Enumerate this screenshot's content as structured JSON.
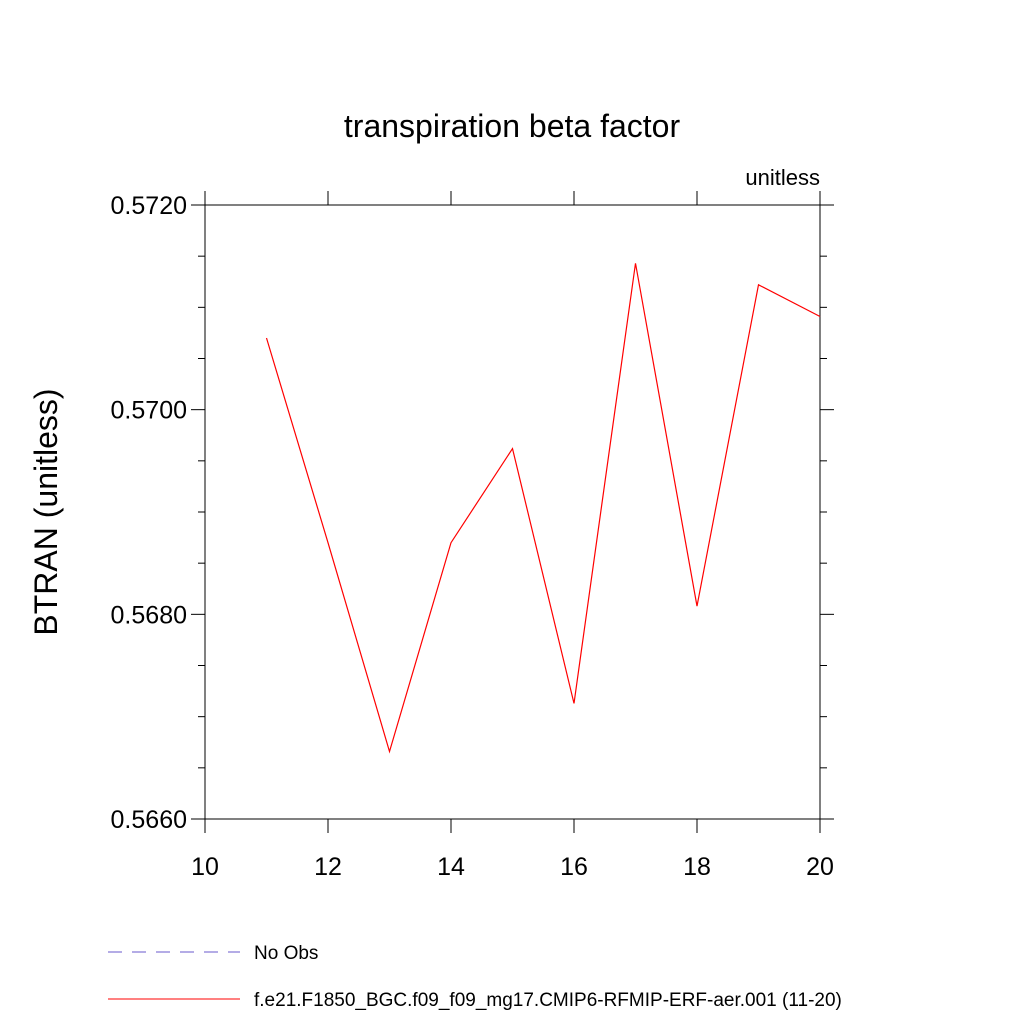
{
  "chart_data": {
    "type": "line",
    "title": "transpiration beta factor",
    "subtitle": "unitless",
    "ylabel": "BTRAN  (unitless)",
    "xlabel": "",
    "xlim": [
      10,
      20
    ],
    "ylim": [
      0.566,
      0.572
    ],
    "x_ticks": [
      10,
      12,
      14,
      16,
      18,
      20
    ],
    "x_tick_labels": [
      "10",
      "12",
      "14",
      "16",
      "18",
      "20"
    ],
    "y_ticks": [
      0.566,
      0.568,
      0.57,
      0.572
    ],
    "y_tick_labels": [
      "0.5660",
      "0.5680",
      "0.5700",
      "0.5720"
    ],
    "y_minor_step": 0.0005,
    "x_minor_step": 1,
    "grid": false,
    "legend_position": "bottom",
    "series": [
      {
        "name": "No Obs",
        "color": "#6a5acd",
        "dash": "dashed",
        "x": [],
        "y": []
      },
      {
        "name": "f.e21.F1850_BGC.f09_f09_mg17.CMIP6-RFMIP-ERF-aer.001 (11-20)",
        "color": "#ff0000",
        "dash": "solid",
        "x": [
          11,
          12,
          13,
          14,
          15,
          16,
          17,
          18,
          19,
          20
        ],
        "y": [
          0.5707,
          0.5687,
          0.56666,
          0.5687,
          0.56962,
          0.56713,
          0.57143,
          0.56808,
          0.57122,
          0.57091
        ]
      }
    ]
  }
}
